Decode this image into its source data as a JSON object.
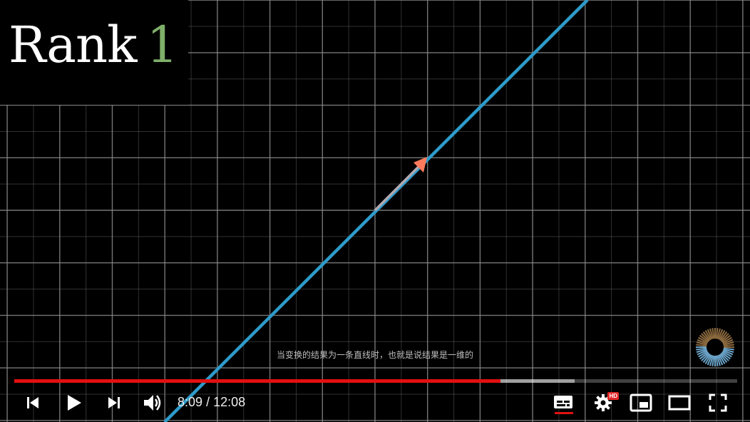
{
  "video": {
    "title_word": "Rank",
    "title_number": "1",
    "subtitle": "当变换的结果为一条直线时，也就是说结果是一维的",
    "current_time": "8:09",
    "separator": "/",
    "duration": "12:08",
    "played_fraction": 0.673,
    "buffered_fraction": 0.775
  },
  "controls": {
    "icons": [
      "previous-icon",
      "play-icon",
      "next-icon",
      "volume-icon",
      "subtitles-icon",
      "settings-icon",
      "miniplayer-icon",
      "theater-icon",
      "fullscreen-icon"
    ],
    "hd_badge": "HD"
  },
  "colors": {
    "background": "#000000",
    "grid": "#8a8a8a",
    "line": "#2e9bc9",
    "vector": "#ff7a5c",
    "vector_shaft": "#b0a8b0",
    "progress_played": "#e31010",
    "title_number": "#7fb06a"
  }
}
